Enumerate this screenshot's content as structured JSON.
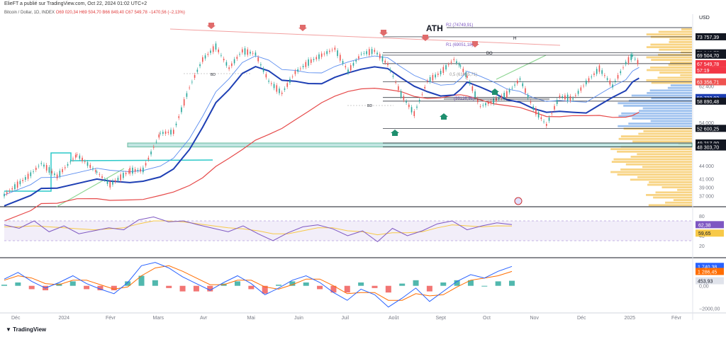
{
  "header": {
    "published": "ElieFT a publié sur TradingView.com, Oct 22, 2024 01:02 UTC+2",
    "symbol": "Bitcoin / Dollar, 1D, INDEX",
    "ohlc": "O69 020,34  H69 504,70  B66 849,40  C67 549,78  −1470,56 (−2,13%)"
  },
  "footer": {
    "brand": "TradingView"
  },
  "colors": {
    "candle_up": "#26a69a",
    "candle_down": "#ef5350",
    "ma_short": "#1e3fb4",
    "ma_long": "#e64a4a",
    "ma_light": "#5b8def",
    "trend": "#8fd694",
    "box": "#2cc9c9",
    "zone": "#b2dfdb",
    "rsi_line": "#7e57c2",
    "rsi_signal": "#f7c948",
    "macd_line": "#2962ff",
    "macd_signal": "#ff6d00"
  },
  "chart_data": [
    {
      "type": "line",
      "panel": "price",
      "currency": "USD",
      "y_ticks": [
        37000,
        39000,
        41000,
        44000,
        54000,
        62400
      ],
      "x_ticks": [
        "Déc",
        "2024",
        "Févr",
        "Mars",
        "Avr",
        "Mai",
        "Juin",
        "Juil",
        "Août",
        "Sept",
        "Oct",
        "Nov",
        "Déc",
        "2025",
        "Févr"
      ],
      "ylim": [
        34500,
        78000
      ],
      "x_index_range": [
        0,
        520
      ],
      "series": [
        {
          "name": "",
          "style": "ohlc-close-approx",
          "x": [
            0,
            20,
            28,
            40,
            55,
            70,
            80,
            95,
            105,
            118,
            128,
            140,
            150,
            160,
            170,
            180,
            190,
            200,
            210,
            220,
            230,
            240,
            250,
            260,
            270,
            280,
            290,
            300,
            310,
            320,
            330,
            340,
            345,
            350,
            360,
            370,
            380,
            390,
            400,
            410,
            420,
            430,
            440,
            450,
            460,
            470,
            475,
            480
          ],
          "values": [
            37200,
            42000,
            44500,
            41500,
            46500,
            42500,
            39600,
            42800,
            43000,
            51500,
            51800,
            62000,
            68500,
            71500,
            66500,
            70500,
            69800,
            63500,
            60700,
            65500,
            67800,
            69500,
            71000,
            65800,
            69800,
            70500,
            67400,
            60500,
            56000,
            63500,
            65500,
            68500,
            67000,
            64500,
            57700,
            58900,
            60500,
            64000,
            57300,
            53400,
            60000,
            59400,
            63200,
            66400,
            62400,
            67700,
            69400,
            67550
          ]
        }
      ],
      "horizontal_levels": [
        {
          "label": "73 757,39",
          "value": 73757.39
        },
        {
          "label": "70 040,75",
          "value": 70040.75
        },
        {
          "label": "69 504,70",
          "value": 69504.7
        },
        {
          "label": "67 549,78",
          "value": 67549.78,
          "sublabel": "57:19"
        },
        {
          "label": "63 356,71",
          "value": 63356.71
        },
        {
          "label": "59 722,02",
          "value": 59722.02
        },
        {
          "label": "58 890,48",
          "value": 58890.48
        },
        {
          "label": "52 600,25",
          "value": 52600.25
        },
        {
          "label": "49 217,00",
          "value": 49217
        },
        {
          "label": "48 303,70",
          "value": 48303.7
        }
      ],
      "annotations": [
        {
          "text": "ATH"
        },
        {
          "text": "R2 (74749,91)"
        },
        {
          "text": "R1 (69051,18)"
        },
        {
          "text": "0,5 (61465,71)"
        },
        {
          "text": "(55126,98)"
        },
        {
          "text": "BO"
        },
        {
          "text": "BD"
        },
        {
          "text": "BD"
        },
        {
          "text": "H"
        }
      ]
    },
    {
      "type": "line",
      "panel": "rsi",
      "y_ticks": [
        80,
        40,
        20
      ],
      "ylim": [
        10,
        90
      ],
      "series": [
        {
          "name": "",
          "values": [
            62,
            55,
            70,
            48,
            60,
            44,
            50,
            56,
            52,
            72,
            78,
            68,
            70,
            62,
            55,
            48,
            60,
            44,
            30,
            46,
            58,
            62,
            54,
            40,
            50,
            28,
            55,
            40,
            50,
            64,
            70,
            52,
            60,
            66,
            62.38
          ]
        },
        {
          "name": "",
          "values": [
            58,
            58,
            60,
            58,
            56,
            54,
            52,
            54,
            56,
            64,
            70,
            70,
            68,
            64,
            60,
            56,
            54,
            50,
            44,
            44,
            50,
            56,
            56,
            50,
            48,
            42,
            46,
            46,
            48,
            56,
            62,
            60,
            58,
            60,
            59.65
          ]
        }
      ],
      "last_values": [
        "62,38",
        "59,65"
      ]
    },
    {
      "type": "bar",
      "panel": "macd",
      "y_ticks": [
        "0,00",
        "−2000,00"
      ],
      "ylim": [
        -2300,
        2200
      ],
      "series": [
        {
          "name": "",
          "style": "line",
          "values": [
            600,
            1200,
            400,
            -200,
            300,
            900,
            200,
            -300,
            -700,
            300,
            1800,
            2100,
            1600,
            800,
            200,
            -400,
            300,
            900,
            200,
            -800,
            -200,
            500,
            900,
            300,
            -600,
            -1300,
            -300,
            -800,
            -1900,
            -1100,
            -200,
            -1400,
            -500,
            400,
            1000,
            700,
            1300,
            1740.38
          ]
        },
        {
          "name": "",
          "style": "line",
          "values": [
            500,
            900,
            700,
            200,
            100,
            500,
            500,
            100,
            -300,
            -100,
            900,
            1600,
            1800,
            1300,
            700,
            100,
            100,
            500,
            500,
            -100,
            -300,
            100,
            600,
            600,
            0,
            -700,
            -600,
            -600,
            -1300,
            -1300,
            -700,
            -900,
            -800,
            -100,
            500,
            700,
            900,
            1286.45
          ]
        }
      ],
      "histogram": [
        100,
        300,
        -300,
        -400,
        200,
        400,
        -300,
        -400,
        -400,
        400,
        900,
        500,
        -200,
        -500,
        -500,
        -500,
        200,
        400,
        -300,
        -700,
        100,
        400,
        300,
        -300,
        -600,
        -600,
        300,
        -200,
        -600,
        200,
        500,
        -500,
        300,
        500,
        500,
        0,
        400,
        453.93
      ],
      "last_values": [
        "1 740,38",
        "1 286,45",
        "453,93"
      ]
    }
  ]
}
